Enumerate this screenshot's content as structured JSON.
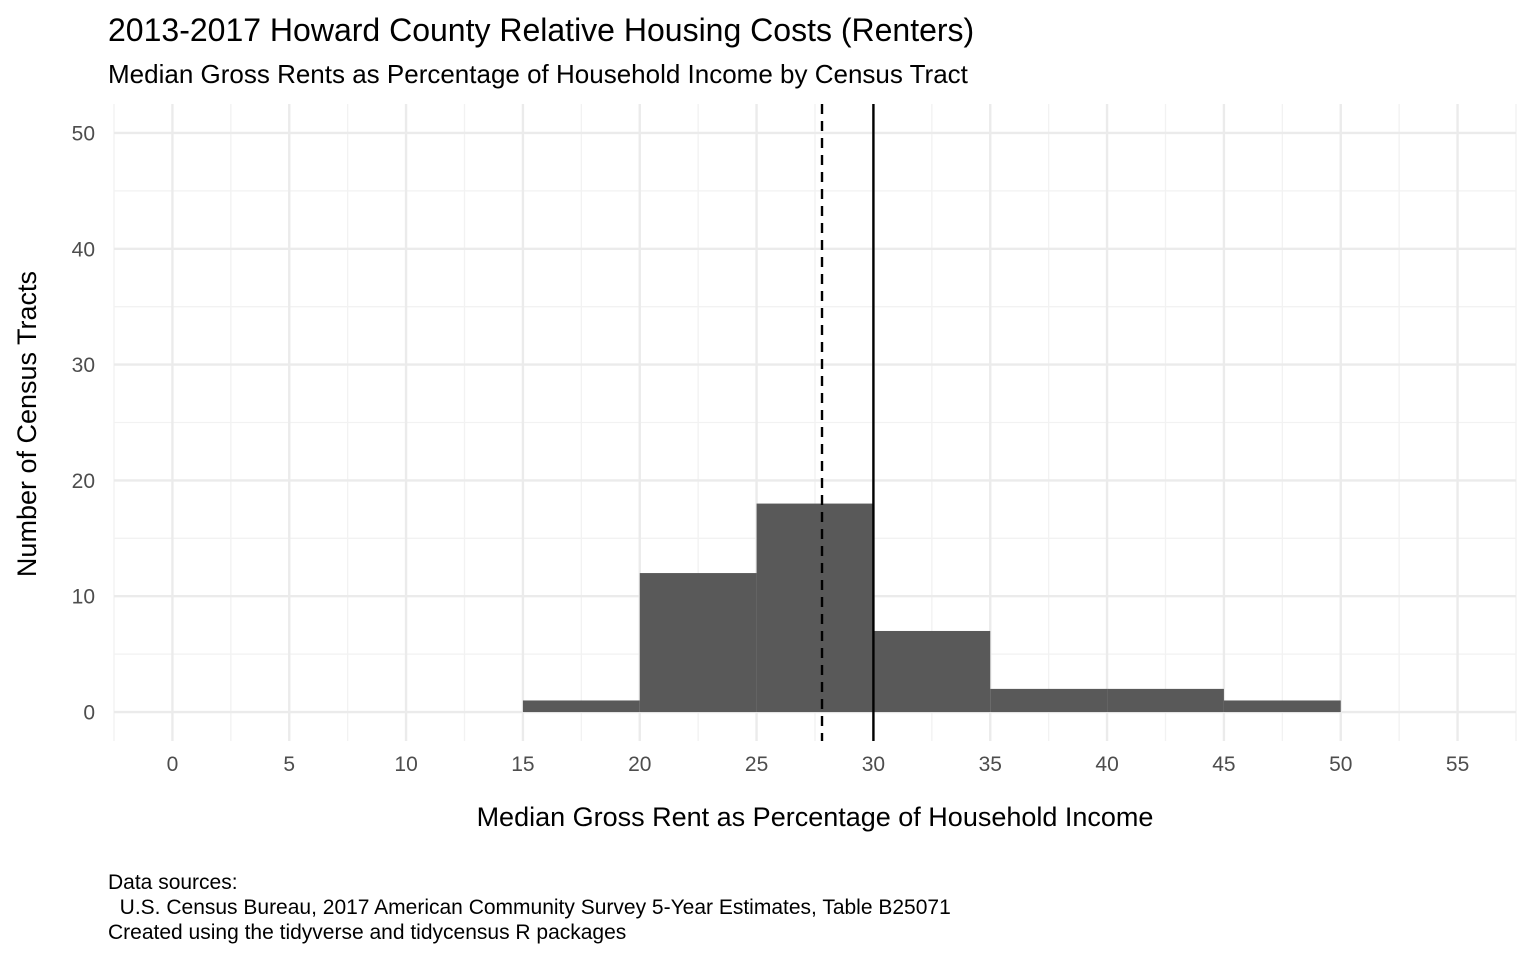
{
  "chart_data": {
    "type": "bar",
    "title": "2013-2017 Howard County Relative Housing Costs (Renters)",
    "subtitle": "Median Gross Rents as Percentage of Household Income by Census Tract",
    "xlabel": "Median Gross Rent as Percentage of Household Income",
    "ylabel": "Number of Census Tracts",
    "bins": [
      {
        "x0": 15,
        "x1": 20,
        "count": 1
      },
      {
        "x0": 20,
        "x1": 25,
        "count": 12
      },
      {
        "x0": 25,
        "x1": 30,
        "count": 18
      },
      {
        "x0": 30,
        "x1": 35,
        "count": 7
      },
      {
        "x0": 35,
        "x1": 40,
        "count": 2
      },
      {
        "x0": 40,
        "x1": 45,
        "count": 2
      },
      {
        "x0": 45,
        "x1": 50,
        "count": 1
      }
    ],
    "xlim": [
      -2.5,
      57.5
    ],
    "ylim": [
      -2.5,
      52.5
    ],
    "x_ticks": [
      "0",
      "5",
      "10",
      "15",
      "20",
      "25",
      "30",
      "35",
      "40",
      "45",
      "50",
      "55"
    ],
    "y_ticks": [
      "0",
      "10",
      "20",
      "30",
      "40",
      "50"
    ],
    "reference_lines": [
      {
        "x": 27.8,
        "style": "dashed"
      },
      {
        "x": 30,
        "style": "solid"
      }
    ],
    "grid": true,
    "bar_color": "#595959"
  },
  "caption": {
    "line1": "Data sources:",
    "line2": "  U.S. Census Bureau, 2017 American Community Survey 5-Year Estimates, Table B25071",
    "line3": "Created using the tidyverse and tidycensus R packages"
  }
}
